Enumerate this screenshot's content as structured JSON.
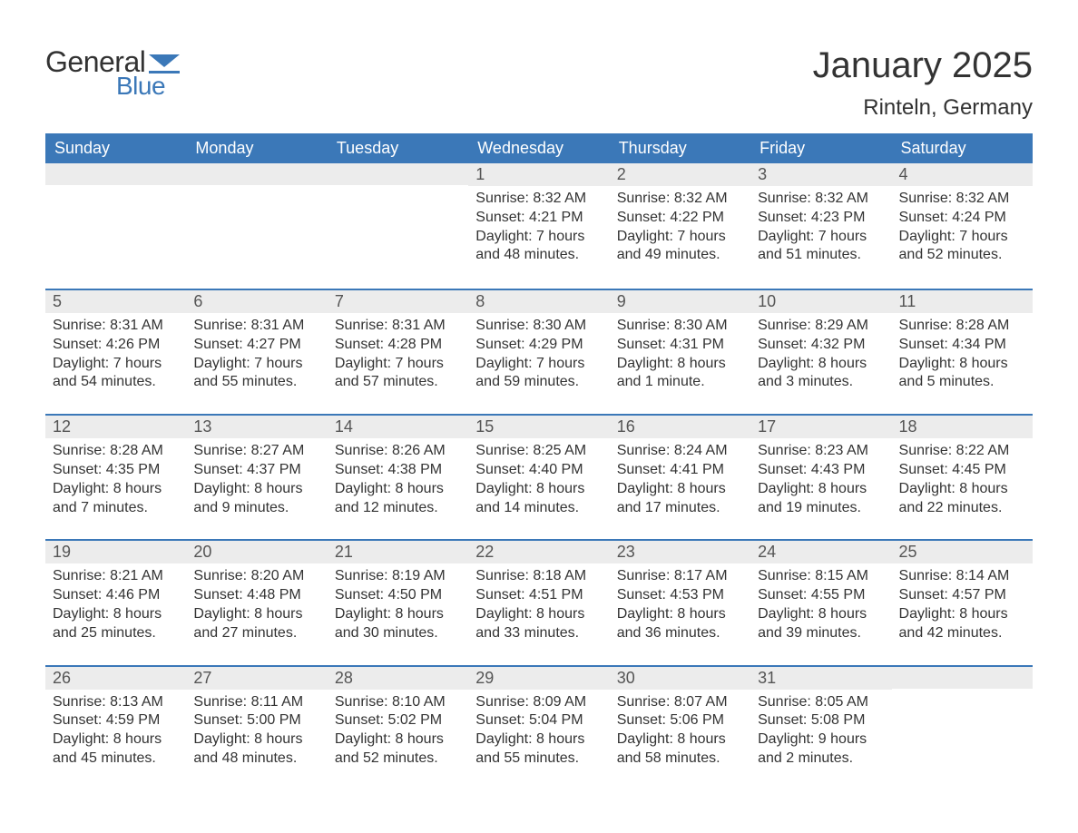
{
  "logo": {
    "text_general": "General",
    "text_blue": "Blue",
    "accent_color": "#3b78b8"
  },
  "title": "January 2025",
  "location": "Rinteln, Germany",
  "colors": {
    "header_bg": "#3b78b8",
    "header_text": "#ffffff",
    "daynum_bg": "#ececec",
    "text": "#333333",
    "rule": "#3b78b8",
    "background": "#ffffff"
  },
  "typography": {
    "title_fontsize": 40,
    "location_fontsize": 24,
    "dow_fontsize": 18,
    "daynum_fontsize": 18,
    "body_fontsize": 16
  },
  "days_of_week": [
    "Sunday",
    "Monday",
    "Tuesday",
    "Wednesday",
    "Thursday",
    "Friday",
    "Saturday"
  ],
  "weeks": [
    [
      {
        "n": "",
        "sunrise": "",
        "sunset": "",
        "daylight": ""
      },
      {
        "n": "",
        "sunrise": "",
        "sunset": "",
        "daylight": ""
      },
      {
        "n": "",
        "sunrise": "",
        "sunset": "",
        "daylight": ""
      },
      {
        "n": "1",
        "sunrise": "Sunrise: 8:32 AM",
        "sunset": "Sunset: 4:21 PM",
        "daylight": "Daylight: 7 hours and 48 minutes."
      },
      {
        "n": "2",
        "sunrise": "Sunrise: 8:32 AM",
        "sunset": "Sunset: 4:22 PM",
        "daylight": "Daylight: 7 hours and 49 minutes."
      },
      {
        "n": "3",
        "sunrise": "Sunrise: 8:32 AM",
        "sunset": "Sunset: 4:23 PM",
        "daylight": "Daylight: 7 hours and 51 minutes."
      },
      {
        "n": "4",
        "sunrise": "Sunrise: 8:32 AM",
        "sunset": "Sunset: 4:24 PM",
        "daylight": "Daylight: 7 hours and 52 minutes."
      }
    ],
    [
      {
        "n": "5",
        "sunrise": "Sunrise: 8:31 AM",
        "sunset": "Sunset: 4:26 PM",
        "daylight": "Daylight: 7 hours and 54 minutes."
      },
      {
        "n": "6",
        "sunrise": "Sunrise: 8:31 AM",
        "sunset": "Sunset: 4:27 PM",
        "daylight": "Daylight: 7 hours and 55 minutes."
      },
      {
        "n": "7",
        "sunrise": "Sunrise: 8:31 AM",
        "sunset": "Sunset: 4:28 PM",
        "daylight": "Daylight: 7 hours and 57 minutes."
      },
      {
        "n": "8",
        "sunrise": "Sunrise: 8:30 AM",
        "sunset": "Sunset: 4:29 PM",
        "daylight": "Daylight: 7 hours and 59 minutes."
      },
      {
        "n": "9",
        "sunrise": "Sunrise: 8:30 AM",
        "sunset": "Sunset: 4:31 PM",
        "daylight": "Daylight: 8 hours and 1 minute."
      },
      {
        "n": "10",
        "sunrise": "Sunrise: 8:29 AM",
        "sunset": "Sunset: 4:32 PM",
        "daylight": "Daylight: 8 hours and 3 minutes."
      },
      {
        "n": "11",
        "sunrise": "Sunrise: 8:28 AM",
        "sunset": "Sunset: 4:34 PM",
        "daylight": "Daylight: 8 hours and 5 minutes."
      }
    ],
    [
      {
        "n": "12",
        "sunrise": "Sunrise: 8:28 AM",
        "sunset": "Sunset: 4:35 PM",
        "daylight": "Daylight: 8 hours and 7 minutes."
      },
      {
        "n": "13",
        "sunrise": "Sunrise: 8:27 AM",
        "sunset": "Sunset: 4:37 PM",
        "daylight": "Daylight: 8 hours and 9 minutes."
      },
      {
        "n": "14",
        "sunrise": "Sunrise: 8:26 AM",
        "sunset": "Sunset: 4:38 PM",
        "daylight": "Daylight: 8 hours and 12 minutes."
      },
      {
        "n": "15",
        "sunrise": "Sunrise: 8:25 AM",
        "sunset": "Sunset: 4:40 PM",
        "daylight": "Daylight: 8 hours and 14 minutes."
      },
      {
        "n": "16",
        "sunrise": "Sunrise: 8:24 AM",
        "sunset": "Sunset: 4:41 PM",
        "daylight": "Daylight: 8 hours and 17 minutes."
      },
      {
        "n": "17",
        "sunrise": "Sunrise: 8:23 AM",
        "sunset": "Sunset: 4:43 PM",
        "daylight": "Daylight: 8 hours and 19 minutes."
      },
      {
        "n": "18",
        "sunrise": "Sunrise: 8:22 AM",
        "sunset": "Sunset: 4:45 PM",
        "daylight": "Daylight: 8 hours and 22 minutes."
      }
    ],
    [
      {
        "n": "19",
        "sunrise": "Sunrise: 8:21 AM",
        "sunset": "Sunset: 4:46 PM",
        "daylight": "Daylight: 8 hours and 25 minutes."
      },
      {
        "n": "20",
        "sunrise": "Sunrise: 8:20 AM",
        "sunset": "Sunset: 4:48 PM",
        "daylight": "Daylight: 8 hours and 27 minutes."
      },
      {
        "n": "21",
        "sunrise": "Sunrise: 8:19 AM",
        "sunset": "Sunset: 4:50 PM",
        "daylight": "Daylight: 8 hours and 30 minutes."
      },
      {
        "n": "22",
        "sunrise": "Sunrise: 8:18 AM",
        "sunset": "Sunset: 4:51 PM",
        "daylight": "Daylight: 8 hours and 33 minutes."
      },
      {
        "n": "23",
        "sunrise": "Sunrise: 8:17 AM",
        "sunset": "Sunset: 4:53 PM",
        "daylight": "Daylight: 8 hours and 36 minutes."
      },
      {
        "n": "24",
        "sunrise": "Sunrise: 8:15 AM",
        "sunset": "Sunset: 4:55 PM",
        "daylight": "Daylight: 8 hours and 39 minutes."
      },
      {
        "n": "25",
        "sunrise": "Sunrise: 8:14 AM",
        "sunset": "Sunset: 4:57 PM",
        "daylight": "Daylight: 8 hours and 42 minutes."
      }
    ],
    [
      {
        "n": "26",
        "sunrise": "Sunrise: 8:13 AM",
        "sunset": "Sunset: 4:59 PM",
        "daylight": "Daylight: 8 hours and 45 minutes."
      },
      {
        "n": "27",
        "sunrise": "Sunrise: 8:11 AM",
        "sunset": "Sunset: 5:00 PM",
        "daylight": "Daylight: 8 hours and 48 minutes."
      },
      {
        "n": "28",
        "sunrise": "Sunrise: 8:10 AM",
        "sunset": "Sunset: 5:02 PM",
        "daylight": "Daylight: 8 hours and 52 minutes."
      },
      {
        "n": "29",
        "sunrise": "Sunrise: 8:09 AM",
        "sunset": "Sunset: 5:04 PM",
        "daylight": "Daylight: 8 hours and 55 minutes."
      },
      {
        "n": "30",
        "sunrise": "Sunrise: 8:07 AM",
        "sunset": "Sunset: 5:06 PM",
        "daylight": "Daylight: 8 hours and 58 minutes."
      },
      {
        "n": "31",
        "sunrise": "Sunrise: 8:05 AM",
        "sunset": "Sunset: 5:08 PM",
        "daylight": "Daylight: 9 hours and 2 minutes."
      },
      {
        "n": "",
        "sunrise": "",
        "sunset": "",
        "daylight": ""
      }
    ]
  ]
}
